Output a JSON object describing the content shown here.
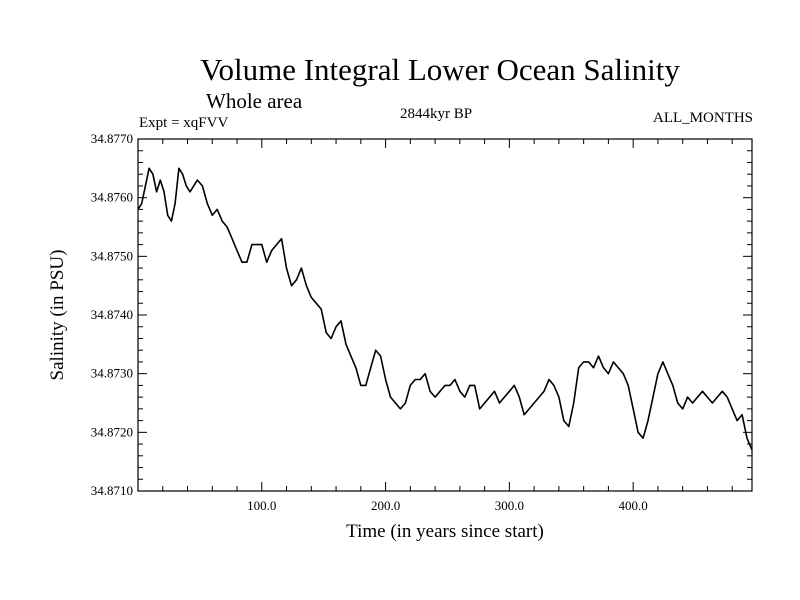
{
  "header": {
    "title": "Volume Integral Lower Ocean Salinity",
    "subtitle": "Whole area",
    "experiment": "Expt = xqFVV",
    "epoch": "2844kyr BP",
    "months": "ALL_MONTHS"
  },
  "chart_data": {
    "type": "line",
    "title": "Volume Integral Lower Ocean Salinity",
    "xlabel": "Time (in years since start)",
    "ylabel": "Salinity (in PSU)",
    "xlim": [
      0,
      496
    ],
    "ylim": [
      34.871,
      34.877
    ],
    "grid": false,
    "x_ticks": [
      100,
      200,
      300,
      400
    ],
    "x_tick_labels": [
      "100.0",
      "200.0",
      "300.0",
      "400.0"
    ],
    "y_ticks": [
      34.871,
      34.872,
      34.873,
      34.874,
      34.875,
      34.876,
      34.877
    ],
    "y_tick_labels": [
      "34.8710",
      "34.8720",
      "34.8730",
      "34.8740",
      "34.8750",
      "34.8760",
      "34.8770"
    ],
    "series": [
      {
        "name": "Salinity",
        "color": "#000000",
        "x": [
          0,
          3,
          6,
          9,
          12,
          15,
          18,
          21,
          24,
          27,
          30,
          33,
          36,
          39,
          42,
          45,
          48,
          52,
          56,
          60,
          64,
          68,
          72,
          76,
          80,
          84,
          88,
          92,
          96,
          100,
          104,
          108,
          112,
          116,
          120,
          124,
          128,
          132,
          136,
          140,
          144,
          148,
          152,
          156,
          160,
          164,
          168,
          172,
          176,
          180,
          184,
          188,
          192,
          196,
          200,
          204,
          208,
          212,
          216,
          220,
          224,
          228,
          232,
          236,
          240,
          244,
          248,
          252,
          256,
          260,
          264,
          268,
          272,
          276,
          280,
          284,
          288,
          292,
          296,
          300,
          304,
          308,
          312,
          316,
          320,
          324,
          328,
          332,
          336,
          340,
          344,
          348,
          352,
          356,
          360,
          364,
          368,
          372,
          376,
          380,
          384,
          388,
          392,
          396,
          400,
          404,
          408,
          412,
          416,
          420,
          424,
          428,
          432,
          436,
          440,
          444,
          448,
          452,
          456,
          460,
          464,
          468,
          472,
          476,
          480,
          484,
          488,
          492,
          496
        ],
        "values": [
          34.8758,
          34.8759,
          34.8762,
          34.8765,
          34.8764,
          34.8761,
          34.8763,
          34.8761,
          34.8757,
          34.8756,
          34.8759,
          34.8765,
          34.8764,
          34.8762,
          34.8761,
          34.8762,
          34.8763,
          34.8762,
          34.8759,
          34.8757,
          34.8758,
          34.8756,
          34.8755,
          34.8753,
          34.8751,
          34.8749,
          34.8749,
          34.8752,
          34.8752,
          34.8752,
          34.8749,
          34.8751,
          34.8752,
          34.8753,
          34.8748,
          34.8745,
          34.8746,
          34.8748,
          34.8745,
          34.8743,
          34.8742,
          34.8741,
          34.8737,
          34.8736,
          34.8738,
          34.8739,
          34.8735,
          34.8733,
          34.8731,
          34.8728,
          34.8728,
          34.8731,
          34.8734,
          34.8733,
          34.8729,
          34.8726,
          34.8725,
          34.8724,
          34.8725,
          34.8728,
          34.8729,
          34.8729,
          34.873,
          34.8727,
          34.8726,
          34.8727,
          34.8728,
          34.8728,
          34.8729,
          34.8727,
          34.8726,
          34.8728,
          34.8728,
          34.8724,
          34.8725,
          34.8726,
          34.8727,
          34.8725,
          34.8726,
          34.8727,
          34.8728,
          34.8726,
          34.8723,
          34.8724,
          34.8725,
          34.8726,
          34.8727,
          34.8729,
          34.8728,
          34.8726,
          34.8722,
          34.8721,
          34.8725,
          34.8731,
          34.8732,
          34.8732,
          34.8731,
          34.8733,
          34.8731,
          34.873,
          34.8732,
          34.8731,
          34.873,
          34.8728,
          34.8724,
          34.872,
          34.8719,
          34.8722,
          34.8726,
          34.873,
          34.8732,
          34.873,
          34.8728,
          34.8725,
          34.8724,
          34.8726,
          34.8725,
          34.8726,
          34.8727,
          34.8726,
          34.8725,
          34.8726,
          34.8727,
          34.8726,
          34.8724,
          34.8722,
          34.8723,
          34.8719,
          34.8717
        ]
      }
    ]
  }
}
